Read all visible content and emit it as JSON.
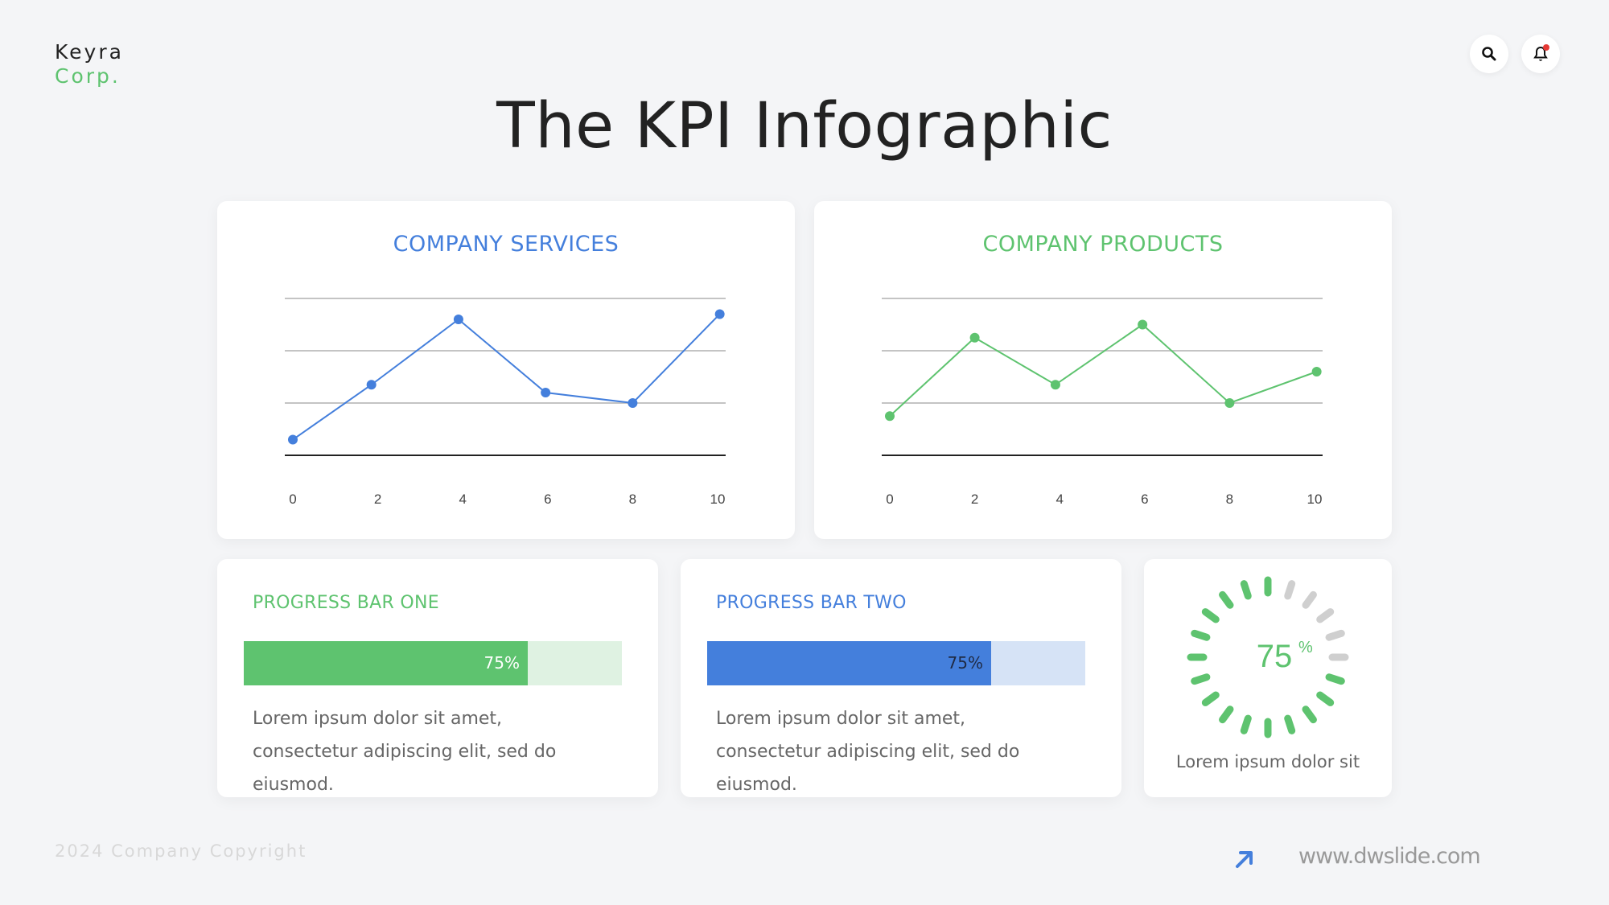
{
  "brand": {
    "line1": "Keyra",
    "line2": "Corp."
  },
  "header": {
    "title": "The KPI Infographic",
    "icons": [
      "search-icon",
      "bell-icon"
    ]
  },
  "colors": {
    "green": "#5ec36f",
    "blue": "#447fdc",
    "green_light": "#dff2e2",
    "blue_light": "#d6e3f6"
  },
  "chart_data": [
    {
      "type": "line",
      "title": "COMPANY SERVICES",
      "color": "#447fdc",
      "x": [
        0,
        2,
        4,
        6,
        8,
        10
      ],
      "tick_labels": [
        "0",
        "2",
        "4",
        "6",
        "8",
        "10"
      ],
      "series": [
        {
          "x": [
            0,
            1.85,
            3.9,
            5.95,
            8,
            10.05
          ],
          "values": [
            0.3,
            1.35,
            2.6,
            1.2,
            1.0,
            2.7
          ]
        }
      ],
      "ylim": [
        0,
        3
      ],
      "grid": true
    },
    {
      "type": "line",
      "title": "COMPANY PRODUCTS",
      "color": "#5ec36f",
      "x": [
        0,
        2,
        4,
        6,
        8,
        10
      ],
      "tick_labels": [
        "0",
        "2",
        "4",
        "6",
        "8",
        "10"
      ],
      "series": [
        {
          "x": [
            0,
            2.0,
            3.9,
            5.95,
            8,
            10.05
          ],
          "values": [
            0.75,
            2.25,
            1.35,
            2.5,
            1.0,
            1.6
          ]
        }
      ],
      "ylim": [
        0,
        3
      ],
      "grid": true
    }
  ],
  "progress": [
    {
      "title": "PROGRESS BAR ONE",
      "value": 75,
      "label": "75%",
      "description": "Lorem ipsum dolor sit amet, consectetur adipiscing elit, sed do eiusmod."
    },
    {
      "title": "PROGRESS BAR TWO",
      "value": 75,
      "label": "75%",
      "description": "Lorem ipsum dolor sit amet, consectetur adipiscing elit, sed do eiusmod."
    }
  ],
  "radial": {
    "value": 75,
    "number": "75",
    "unit": "%",
    "description": "Lorem ipsum dolor sit"
  },
  "footer": {
    "copyright": "2024 Company Copyright",
    "url": "www.dwslide.com"
  }
}
